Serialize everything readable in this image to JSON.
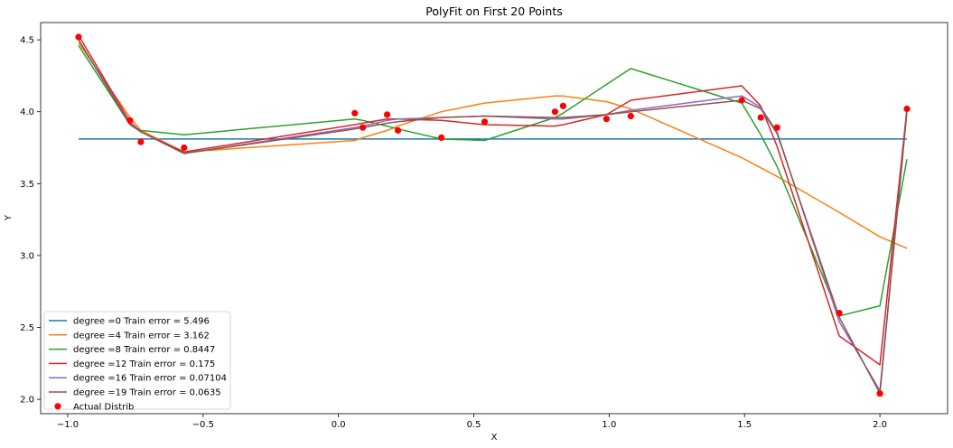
{
  "chart_data": {
    "type": "line",
    "title": "PolyFit on First 20 Points",
    "xlabel": "X",
    "ylabel": "Y",
    "xlim": [
      -1.1,
      2.25
    ],
    "ylim": [
      1.9,
      4.62
    ],
    "xticks": [
      -1.0,
      -0.5,
      0.0,
      0.5,
      1.0,
      1.5,
      2.0
    ],
    "xtick_labels": [
      "−1.0",
      "−0.5",
      "0.0",
      "0.5",
      "1.0",
      "1.5",
      "2.0"
    ],
    "yticks": [
      2.0,
      2.5,
      3.0,
      3.5,
      4.0,
      4.5
    ],
    "ytick_labels": [
      "2.0",
      "2.5",
      "3.0",
      "3.5",
      "4.0",
      "4.5"
    ],
    "grid": false,
    "legend_position": "lower-left",
    "series": [
      {
        "name": "degree =0 Train error = 5.496",
        "color": "#1f77b4",
        "x": [
          -0.96,
          2.1
        ],
        "y": [
          3.81,
          3.81
        ]
      },
      {
        "name": "degree =4 Train error = 3.162",
        "color": "#ff7f0e",
        "x": [
          -0.96,
          -0.77,
          -0.73,
          -0.57,
          0.06,
          0.09,
          0.18,
          0.22,
          0.38,
          0.54,
          0.8,
          0.83,
          0.99,
          1.08,
          1.49,
          1.56,
          1.62,
          1.85,
          2.0,
          2.1
        ],
        "y": [
          4.48,
          3.96,
          3.87,
          3.72,
          3.8,
          3.82,
          3.87,
          3.9,
          4.0,
          4.06,
          4.11,
          4.11,
          4.07,
          4.02,
          3.68,
          3.61,
          3.55,
          3.3,
          3.13,
          3.05
        ]
      },
      {
        "name": "degree =8 Train error = 0.8447",
        "color": "#2ca02c",
        "x": [
          -0.96,
          -0.77,
          -0.73,
          -0.57,
          0.06,
          0.09,
          0.18,
          0.22,
          0.38,
          0.54,
          0.8,
          0.83,
          0.99,
          1.08,
          1.49,
          1.56,
          1.62,
          1.85,
          2.0,
          2.1
        ],
        "y": [
          4.46,
          3.91,
          3.87,
          3.84,
          3.95,
          3.94,
          3.9,
          3.88,
          3.81,
          3.8,
          3.96,
          3.99,
          4.19,
          4.3,
          4.06,
          3.84,
          3.62,
          2.58,
          2.65,
          3.67
        ]
      },
      {
        "name": "degree =12 Train error = 0.175",
        "color": "#d62728",
        "x": [
          -0.96,
          -0.77,
          -0.73,
          -0.57,
          0.06,
          0.09,
          0.18,
          0.22,
          0.38,
          0.54,
          0.8,
          0.83,
          0.99,
          1.08,
          1.49,
          1.56,
          1.62,
          1.85,
          2.0,
          2.1
        ],
        "y": [
          4.53,
          3.93,
          3.86,
          3.72,
          3.91,
          3.92,
          3.95,
          3.95,
          3.94,
          3.91,
          3.9,
          3.91,
          3.98,
          4.08,
          4.18,
          4.04,
          3.76,
          2.44,
          2.24,
          4.02
        ]
      },
      {
        "name": "degree =16 Train error = 0.07104",
        "color": "#9467bd",
        "x": [
          -0.96,
          -0.77,
          -0.73,
          -0.57,
          0.06,
          0.09,
          0.18,
          0.22,
          0.38,
          0.54,
          0.8,
          0.83,
          0.99,
          1.08,
          1.49,
          1.56,
          1.62,
          1.85,
          2.0,
          2.1
        ],
        "y": [
          4.5,
          3.92,
          3.86,
          3.71,
          3.89,
          3.9,
          3.94,
          3.95,
          3.96,
          3.97,
          3.95,
          3.95,
          3.98,
          4.01,
          4.11,
          4.03,
          3.86,
          2.54,
          2.06,
          4.01
        ]
      },
      {
        "name": "degree =19 Train error = 0.0635",
        "color": "#8c564b",
        "x": [
          -0.96,
          -0.77,
          -0.73,
          -0.57,
          0.06,
          0.09,
          0.18,
          0.22,
          0.38,
          0.54,
          0.8,
          0.83,
          0.99,
          1.08,
          1.49,
          1.56,
          1.62,
          1.85,
          2.0,
          2.1
        ],
        "y": [
          4.5,
          3.91,
          3.86,
          3.71,
          3.88,
          3.89,
          3.92,
          3.93,
          3.96,
          3.97,
          3.96,
          3.96,
          3.98,
          4.0,
          4.08,
          4.02,
          3.85,
          2.57,
          2.04,
          4.0
        ]
      }
    ],
    "scatter": {
      "name": "Actual Distrib",
      "color": "#ff0000",
      "x": [
        -0.96,
        -0.77,
        -0.73,
        -0.57,
        0.06,
        0.09,
        0.18,
        0.22,
        0.38,
        0.54,
        0.8,
        0.83,
        0.99,
        1.08,
        1.49,
        1.56,
        1.62,
        1.85,
        2.0,
        2.1
      ],
      "y": [
        4.52,
        3.94,
        3.79,
        3.75,
        3.99,
        3.89,
        3.98,
        3.87,
        3.82,
        3.93,
        4.0,
        4.04,
        3.95,
        3.97,
        4.08,
        3.96,
        3.89,
        2.6,
        2.04,
        4.02
      ]
    }
  }
}
